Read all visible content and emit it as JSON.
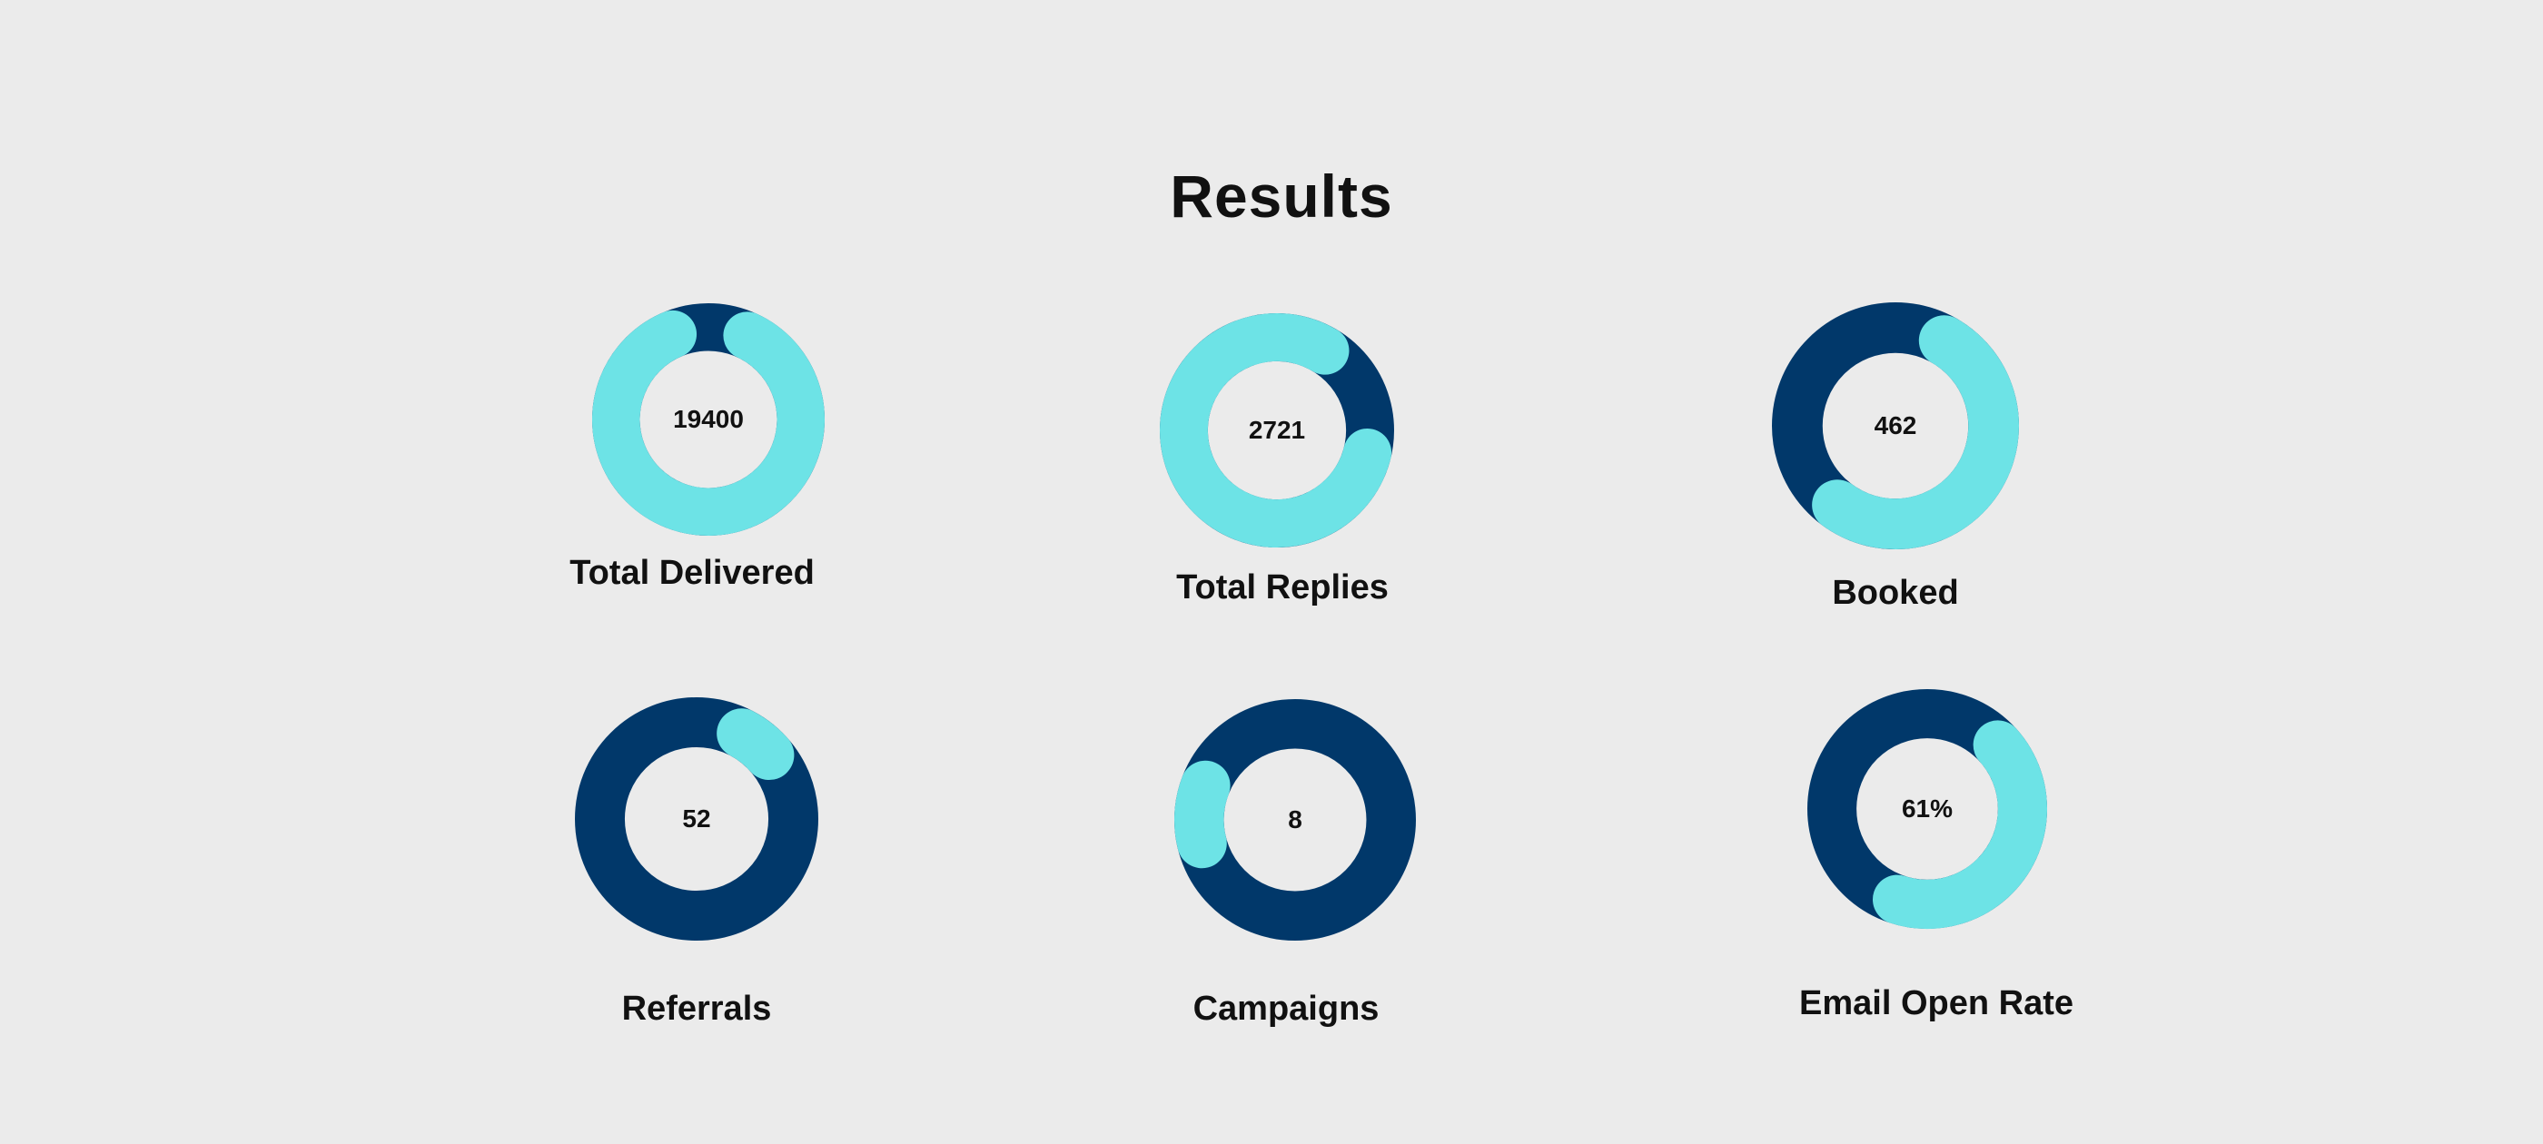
{
  "page": {
    "title": "Results"
  },
  "colors": {
    "background": "#ebebeb",
    "track": "#01386a",
    "progress": "#6de3e6",
    "text": "#111111"
  },
  "chart_data": [
    {
      "type": "donut",
      "label": "Total Delivered",
      "value_text": "19400",
      "progress_fraction": 0.95,
      "start_angle_deg": 10
    },
    {
      "type": "donut",
      "label": "Total Replies",
      "value_text": "2721",
      "progress_fraction": 0.88,
      "start_angle_deg": 89
    },
    {
      "type": "donut",
      "label": "Booked",
      "value_text": "462",
      "progress_fraction": 0.6,
      "start_angle_deg": 15
    },
    {
      "type": "donut",
      "label": "Referrals",
      "value_text": "52",
      "progress_fraction": 0.14,
      "start_angle_deg": 13
    },
    {
      "type": "donut",
      "label": "Campaigns",
      "value_text": "8",
      "progress_fraction": 0.18,
      "start_angle_deg": 241
    },
    {
      "type": "donut",
      "label": "Email Open Rate",
      "value_text": "61%",
      "progress_fraction": 0.5,
      "start_angle_deg": 33
    }
  ]
}
